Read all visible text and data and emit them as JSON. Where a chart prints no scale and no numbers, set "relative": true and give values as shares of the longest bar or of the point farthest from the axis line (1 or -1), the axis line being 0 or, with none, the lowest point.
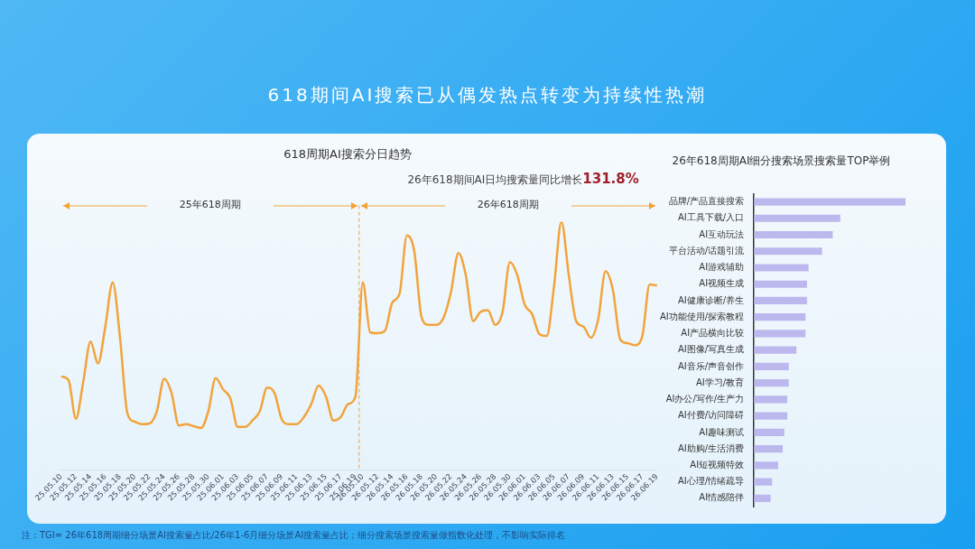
{
  "chart_data": [
    {
      "type": "line",
      "title": "618周期AI搜索分日趋势",
      "relative": true,
      "color": "#f2a33a",
      "grid": false,
      "legend": false,
      "marker": "none",
      "line_style": "solid",
      "annotations": [
        "618期间AI搜索已从偶发热点转变为持续性热潮",
        "注：TGI= 26年618周期细分场景AI搜索量占比/26年1-6月细分场景AI搜索量占比；细分搜索场景搜索量做指数化处理，不影响实际排名",
        "26年618期间AI日均搜索量同比增长131.8%",
        "25年618周期",
        "26年618周期"
      ],
      "categories": [
        "25.05.10",
        null,
        "25.05.12",
        null,
        "25.05.14",
        null,
        "25.05.16",
        null,
        "25.05.18",
        null,
        "25.05.20",
        null,
        "25.05.22",
        null,
        "25.05.24",
        null,
        "25.05.26",
        null,
        "25.05.28",
        null,
        "25.05.30",
        null,
        "25.06.01",
        null,
        "25.06.03",
        null,
        "25.06.05",
        null,
        "25.06.07",
        null,
        "25.06.09",
        null,
        "25.06.11",
        null,
        "25.06.13",
        null,
        "25.06.15",
        null,
        "25.06.17",
        null,
        "25.06.19",
        "26.05.10",
        null,
        "26.05.12",
        null,
        "26.05.14",
        null,
        "26.05.16",
        null,
        "26.05.18",
        null,
        "26.05.20",
        null,
        "26.05.22",
        null,
        "26.05.24",
        null,
        "26.05.26",
        null,
        "26.05.28",
        null,
        "26.05.30",
        null,
        "26.06.01",
        null,
        "26.06.03",
        null,
        "26.06.05",
        null,
        "26.06.07",
        null,
        "26.06.09",
        null,
        "26.06.11",
        null,
        "26.06.13",
        null,
        "26.06.15",
        null,
        "26.06.17",
        null,
        "26.06.19"
      ],
      "values": [
        0.376,
        0.361,
        0.205,
        0.354,
        0.517,
        0.428,
        0.577,
        0.755,
        0.532,
        0.227,
        0.193,
        0.183,
        0.186,
        0.235,
        0.366,
        0.309,
        0.178,
        0.183,
        0.175,
        0.168,
        0.235,
        0.369,
        0.324,
        0.287,
        0.172,
        0.172,
        0.198,
        0.235,
        0.331,
        0.309,
        0.202,
        0.183,
        0.183,
        0.212,
        0.264,
        0.339,
        0.294,
        0.198,
        0.212,
        0.264,
        0.294,
        0.755,
        0.554,
        0.55,
        0.559,
        0.673,
        0.71,
        0.945,
        0.881,
        0.614,
        0.584,
        0.584,
        0.614,
        0.718,
        0.874,
        0.785,
        0.599,
        0.636,
        0.643,
        0.584,
        0.636,
        0.837,
        0.785,
        0.666,
        0.629,
        0.547,
        0.539,
        0.74,
        1,
        0.785,
        0.599,
        0.577,
        0.532,
        0.606,
        0.8,
        0.725,
        0.525,
        0.51,
        0.502,
        0.539,
        0.747,
        0.743
      ],
      "ref_lines": [
        {
          "axis": "x",
          "value": "26.05.10",
          "color": "#e3a14a",
          "line_style": "dashed"
        }
      ]
    },
    {
      "type": "bar",
      "orientation": "horizontal",
      "title": "26年618周期AI细分搜索场景搜索量TOP举例",
      "relative": true,
      "color": "#bcb8ee",
      "grid": false,
      "legend": false,
      "categories": [
        "品牌/产品直接搜索",
        "AI工具下载/入口",
        "AI互动玩法",
        "平台活动/话题引流",
        "AI游戏辅助",
        "AI视频生成",
        "AI健康诊断/养生",
        "AI功能使用/探索教程",
        "AI产品横向比较",
        "AI图像/写真生成",
        "AI音乐/声音创作",
        "AI学习/教育",
        "AI办公/写作/生产力",
        "AI付费/访问障碍",
        "AI趣味测试",
        "AI助购/生活消费",
        "AI短视频特效",
        "AI心理/情绪疏导",
        "AI情感陪伴"
      ],
      "values": [
        1,
        0.57,
        0.52,
        0.45,
        0.36,
        0.35,
        0.35,
        0.34,
        0.34,
        0.28,
        0.23,
        0.23,
        0.22,
        0.22,
        0.2,
        0.19,
        0.16,
        0.12,
        0.11
      ]
    }
  ]
}
